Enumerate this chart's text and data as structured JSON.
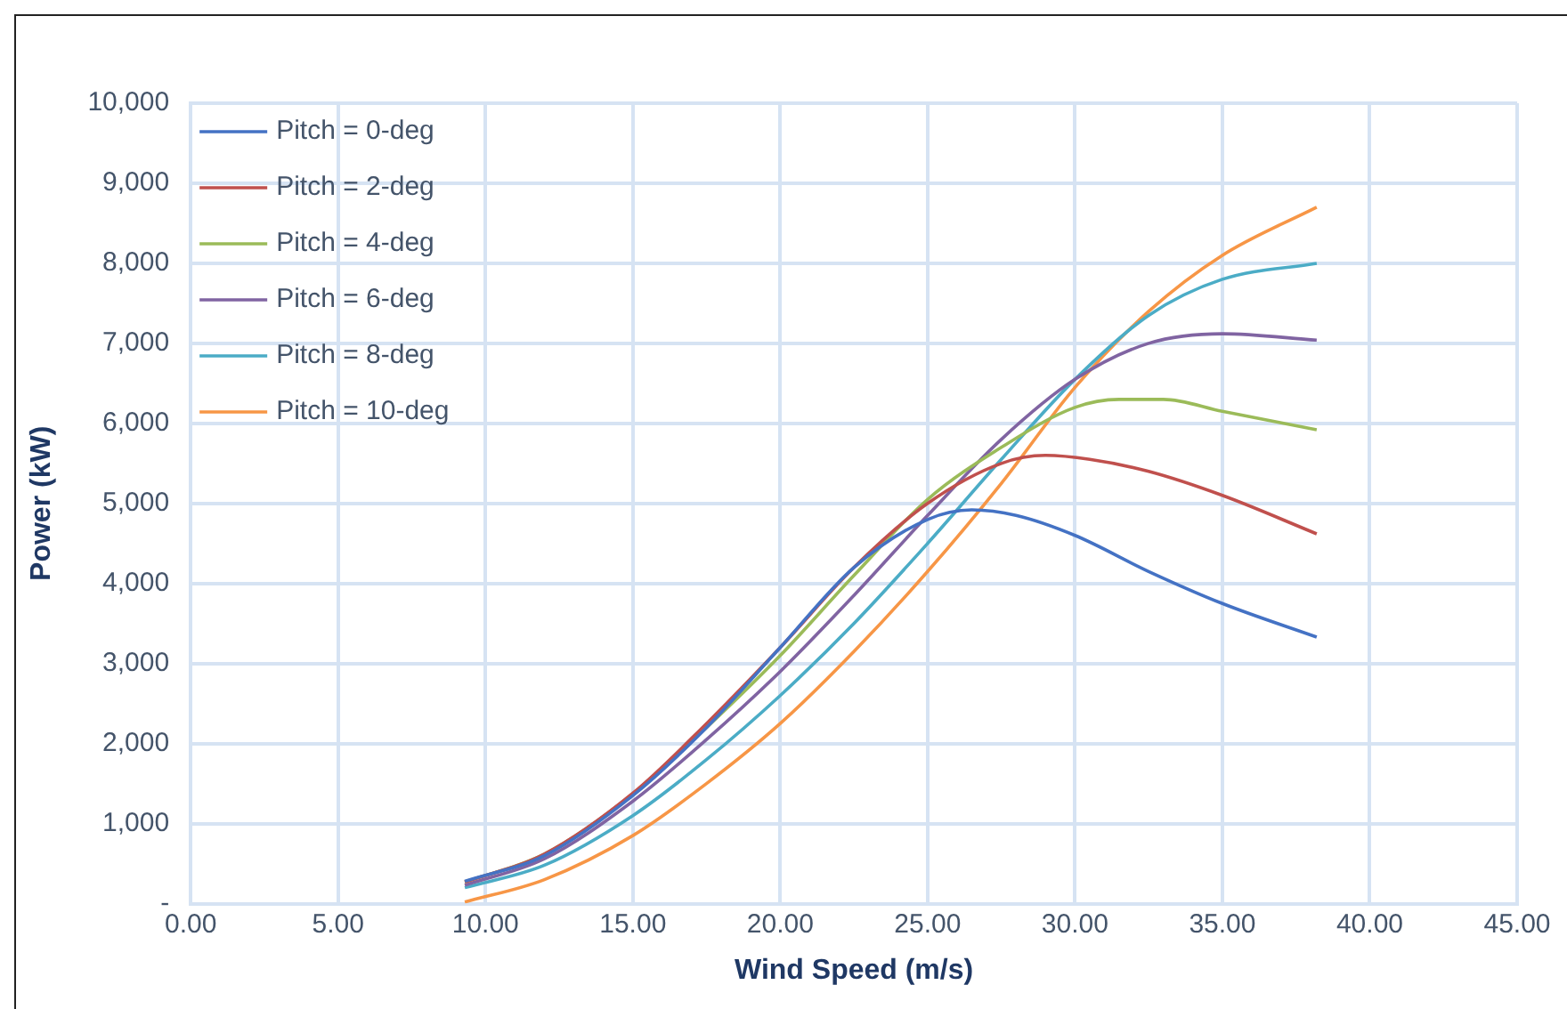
{
  "chart_data": {
    "type": "line",
    "xlabel": "Wind Speed (m/s)",
    "ylabel": "Power (kW)",
    "xlim": [
      0,
      45
    ],
    "xticks": [
      {
        "value": 0,
        "label": "0.00"
      },
      {
        "value": 5,
        "label": "5.00"
      },
      {
        "value": 10,
        "label": "10.00"
      },
      {
        "value": 15,
        "label": "15.00"
      },
      {
        "value": 20,
        "label": "20.00"
      },
      {
        "value": 25,
        "label": "25.00"
      },
      {
        "value": 30,
        "label": "30.00"
      },
      {
        "value": 35,
        "label": "35.00"
      },
      {
        "value": 40,
        "label": "40.00"
      },
      {
        "value": 45,
        "label": "45.00"
      }
    ],
    "ylim": [
      0,
      10000
    ],
    "yticks": [
      {
        "value": 0,
        "label": "-"
      },
      {
        "value": 1000,
        "label": "1,000"
      },
      {
        "value": 2000,
        "label": "2,000"
      },
      {
        "value": 3000,
        "label": "3,000"
      },
      {
        "value": 4000,
        "label": "4,000"
      },
      {
        "value": 5000,
        "label": "5,000"
      },
      {
        "value": 6000,
        "label": "6,000"
      },
      {
        "value": 7000,
        "label": "7,000"
      },
      {
        "value": 8000,
        "label": "8,000"
      },
      {
        "value": 9000,
        "label": "9,000"
      },
      {
        "value": 10000,
        "label": "10,000"
      }
    ],
    "grid": true,
    "legend": "top left",
    "marker": "none",
    "line_style": "solid",
    "series": [
      {
        "name": "Pitch = 0-deg",
        "color": "#4472c4",
        "x": [
          9.3,
          12,
          15,
          17.5,
          20,
          22.5,
          25,
          26.5,
          28,
          30,
          32.5,
          35,
          38.2
        ],
        "values": [
          280,
          600,
          1350,
          2200,
          3200,
          4200,
          4800,
          4920,
          4850,
          4600,
          4150,
          3750,
          3330
        ]
      },
      {
        "name": "Pitch = 2-deg",
        "color": "#c0504d",
        "x": [
          9.3,
          12,
          15,
          17.5,
          20,
          22.5,
          25,
          27.5,
          29,
          30.5,
          32.5,
          35,
          38.2
        ],
        "values": [
          270,
          620,
          1380,
          2250,
          3200,
          4200,
          5000,
          5500,
          5600,
          5550,
          5400,
          5100,
          4620
        ]
      },
      {
        "name": "Pitch = 4-deg",
        "color": "#9bbb59",
        "x": [
          9.3,
          12,
          15,
          17.5,
          20,
          22.5,
          25,
          27.5,
          30,
          31.5,
          33,
          35,
          38.2
        ],
        "values": [
          270,
          620,
          1370,
          2200,
          3100,
          4100,
          5050,
          5700,
          6200,
          6300,
          6300,
          6150,
          5920
        ]
      },
      {
        "name": "Pitch = 6-deg",
        "color": "#8064a2",
        "x": [
          9.3,
          12,
          15,
          17.5,
          20,
          22.5,
          25,
          27.5,
          30,
          32.5,
          35,
          38.2
        ],
        "values": [
          230,
          560,
          1280,
          2050,
          2900,
          3850,
          4850,
          5800,
          6550,
          7000,
          7120,
          7040
        ]
      },
      {
        "name": "Pitch = 8-deg",
        "color": "#4bacc6",
        "x": [
          9.3,
          12,
          15,
          17.5,
          20,
          22.5,
          25,
          27.5,
          30,
          32.5,
          35,
          38.2
        ],
        "values": [
          200,
          480,
          1100,
          1800,
          2600,
          3500,
          4500,
          5550,
          6550,
          7350,
          7800,
          8000
        ]
      },
      {
        "name": "Pitch = 10-deg",
        "color": "#f79646",
        "x": [
          9.3,
          12,
          15,
          17.5,
          20,
          22.5,
          25,
          27.5,
          30,
          32.5,
          35,
          38.2
        ],
        "values": [
          20,
          300,
          850,
          1500,
          2250,
          3150,
          4150,
          5250,
          6450,
          7400,
          8100,
          8700
        ]
      }
    ]
  }
}
